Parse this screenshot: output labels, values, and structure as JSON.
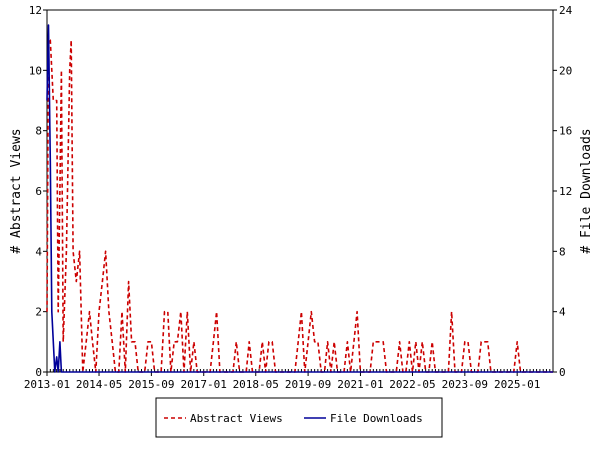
{
  "chart_data": {
    "type": "line",
    "title": "",
    "xlabel": "",
    "x_tick_labels": [
      "2013-01",
      "2014-05",
      "2015-09",
      "2017-01",
      "2018-05",
      "2019-09",
      "2021-01",
      "2022-05",
      "2023-09",
      "2025-01"
    ],
    "x_tick_dates": [
      "2013-01-01",
      "2014-05-01",
      "2015-09-01",
      "2017-01-01",
      "2018-05-01",
      "2019-09-01",
      "2021-01-01",
      "2022-05-01",
      "2023-09-01",
      "2025-01-01"
    ],
    "xlim": [
      "2013-01-01",
      "2025-12-01"
    ],
    "y_left": {
      "label": "# Abstract Views",
      "ylim": [
        0,
        12
      ],
      "ticks": [
        0,
        2,
        4,
        6,
        8,
        10,
        12
      ]
    },
    "y_right": {
      "label": "# File Downloads",
      "ylim": [
        0,
        24
      ],
      "ticks": [
        0,
        4,
        8,
        12,
        16,
        20,
        24
      ]
    },
    "grid": false,
    "legend_position": "bottom",
    "series": [
      {
        "name": "Abstract Views",
        "axis": "left",
        "color": "#cc0000",
        "style": "dashed",
        "points": [
          [
            "2013-01-01",
            2
          ],
          [
            "2013-01-15",
            11
          ],
          [
            "2013-02-01",
            11
          ],
          [
            "2013-02-15",
            10
          ],
          [
            "2013-03-01",
            9
          ],
          [
            "2013-04-01",
            9
          ],
          [
            "2013-04-15",
            2
          ],
          [
            "2013-05-01",
            6
          ],
          [
            "2013-05-15",
            10
          ],
          [
            "2013-06-01",
            1
          ],
          [
            "2013-07-01",
            4
          ],
          [
            "2013-08-01",
            10
          ],
          [
            "2013-08-15",
            11
          ],
          [
            "2013-09-01",
            4
          ],
          [
            "2013-10-01",
            3
          ],
          [
            "2013-11-01",
            4
          ],
          [
            "2013-12-01",
            0
          ],
          [
            "2014-01-01",
            1
          ],
          [
            "2014-02-01",
            2
          ],
          [
            "2014-03-01",
            1
          ],
          [
            "2014-04-01",
            0
          ],
          [
            "2014-05-01",
            2
          ],
          [
            "2014-06-01",
            3
          ],
          [
            "2014-07-01",
            4
          ],
          [
            "2014-08-01",
            2
          ],
          [
            "2014-09-01",
            1
          ],
          [
            "2014-10-01",
            0
          ],
          [
            "2014-11-01",
            0
          ],
          [
            "2014-12-01",
            2
          ],
          [
            "2015-01-01",
            0
          ],
          [
            "2015-02-01",
            3
          ],
          [
            "2015-03-01",
            1
          ],
          [
            "2015-04-01",
            1
          ],
          [
            "2015-05-01",
            0
          ],
          [
            "2015-06-01",
            0
          ],
          [
            "2015-07-01",
            0
          ],
          [
            "2015-08-01",
            1
          ],
          [
            "2015-09-01",
            1
          ],
          [
            "2015-10-01",
            0
          ],
          [
            "2015-11-01",
            0
          ],
          [
            "2015-12-01",
            0
          ],
          [
            "2016-01-01",
            2
          ],
          [
            "2016-02-01",
            2
          ],
          [
            "2016-03-01",
            0
          ],
          [
            "2016-04-01",
            1
          ],
          [
            "2016-05-01",
            1
          ],
          [
            "2016-06-01",
            2
          ],
          [
            "2016-07-01",
            0
          ],
          [
            "2016-08-01",
            2
          ],
          [
            "2016-09-01",
            0
          ],
          [
            "2016-10-01",
            1
          ],
          [
            "2016-11-01",
            0
          ],
          [
            "2016-12-01",
            0
          ],
          [
            "2017-01-01",
            0
          ],
          [
            "2017-02-01",
            0
          ],
          [
            "2017-03-01",
            0
          ],
          [
            "2017-04-01",
            1
          ],
          [
            "2017-05-01",
            2
          ],
          [
            "2017-06-01",
            0
          ],
          [
            "2017-07-01",
            0
          ],
          [
            "2017-08-01",
            0
          ],
          [
            "2017-09-01",
            0
          ],
          [
            "2017-10-01",
            0
          ],
          [
            "2017-11-01",
            1
          ],
          [
            "2017-12-01",
            0
          ],
          [
            "2018-01-01",
            0
          ],
          [
            "2018-02-01",
            0
          ],
          [
            "2018-03-01",
            1
          ],
          [
            "2018-04-01",
            0
          ],
          [
            "2018-05-01",
            0
          ],
          [
            "2018-06-01",
            0
          ],
          [
            "2018-07-01",
            1
          ],
          [
            "2018-08-01",
            0
          ],
          [
            "2018-09-01",
            1
          ],
          [
            "2018-10-01",
            1
          ],
          [
            "2018-11-01",
            0
          ],
          [
            "2018-12-01",
            0
          ],
          [
            "2019-01-01",
            0
          ],
          [
            "2019-02-01",
            0
          ],
          [
            "2019-03-01",
            0
          ],
          [
            "2019-04-01",
            0
          ],
          [
            "2019-05-01",
            0
          ],
          [
            "2019-06-01",
            1
          ],
          [
            "2019-07-01",
            2
          ],
          [
            "2019-08-01",
            0
          ],
          [
            "2019-09-01",
            1
          ],
          [
            "2019-10-01",
            2
          ],
          [
            "2019-11-01",
            1
          ],
          [
            "2019-12-01",
            1
          ],
          [
            "2020-01-01",
            0
          ],
          [
            "2020-02-01",
            0
          ],
          [
            "2020-03-01",
            1
          ],
          [
            "2020-04-01",
            0
          ],
          [
            "2020-05-01",
            1
          ],
          [
            "2020-06-01",
            0
          ],
          [
            "2020-07-01",
            0
          ],
          [
            "2020-08-01",
            0
          ],
          [
            "2020-09-01",
            1
          ],
          [
            "2020-10-01",
            0
          ],
          [
            "2020-11-01",
            1
          ],
          [
            "2020-12-01",
            2
          ],
          [
            "2021-01-01",
            0
          ],
          [
            "2021-02-01",
            0
          ],
          [
            "2021-03-01",
            0
          ],
          [
            "2021-04-01",
            0
          ],
          [
            "2021-05-01",
            1
          ],
          [
            "2021-06-01",
            1
          ],
          [
            "2021-07-01",
            1
          ],
          [
            "2021-08-01",
            1
          ],
          [
            "2021-09-01",
            0
          ],
          [
            "2021-10-01",
            0
          ],
          [
            "2021-11-01",
            0
          ],
          [
            "2021-12-01",
            0
          ],
          [
            "2022-01-01",
            1
          ],
          [
            "2022-02-01",
            0
          ],
          [
            "2022-03-01",
            0
          ],
          [
            "2022-04-01",
            1
          ],
          [
            "2022-05-01",
            0
          ],
          [
            "2022-06-01",
            1
          ],
          [
            "2022-07-01",
            0
          ],
          [
            "2022-08-01",
            1
          ],
          [
            "2022-09-01",
            0
          ],
          [
            "2022-10-01",
            0
          ],
          [
            "2022-11-01",
            1
          ],
          [
            "2022-12-01",
            0
          ],
          [
            "2023-01-01",
            0
          ],
          [
            "2023-02-01",
            0
          ],
          [
            "2023-03-01",
            0
          ],
          [
            "2023-04-01",
            0
          ],
          [
            "2023-05-01",
            2
          ],
          [
            "2023-06-01",
            0
          ],
          [
            "2023-07-01",
            0
          ],
          [
            "2023-08-01",
            0
          ],
          [
            "2023-09-01",
            1
          ],
          [
            "2023-10-01",
            1
          ],
          [
            "2023-11-01",
            0
          ],
          [
            "2023-12-01",
            0
          ],
          [
            "2024-01-01",
            0
          ],
          [
            "2024-02-01",
            1
          ],
          [
            "2024-03-01",
            1
          ],
          [
            "2024-04-01",
            1
          ],
          [
            "2024-05-01",
            0
          ],
          [
            "2024-06-01",
            0
          ],
          [
            "2024-07-01",
            0
          ],
          [
            "2024-08-01",
            0
          ],
          [
            "2024-09-01",
            0
          ],
          [
            "2024-10-01",
            0
          ],
          [
            "2024-11-01",
            0
          ],
          [
            "2024-12-01",
            0
          ],
          [
            "2025-01-01",
            1
          ],
          [
            "2025-02-01",
            0
          ],
          [
            "2025-03-01",
            0
          ],
          [
            "2025-04-01",
            0
          ],
          [
            "2025-05-01",
            0
          ],
          [
            "2025-06-01",
            0
          ],
          [
            "2025-07-01",
            0
          ],
          [
            "2025-08-01",
            0
          ],
          [
            "2025-09-01",
            0
          ],
          [
            "2025-10-01",
            0
          ],
          [
            "2025-11-01",
            0
          ],
          [
            "2025-12-01",
            0
          ]
        ]
      },
      {
        "name": "File Downloads",
        "axis": "right",
        "color": "#000099",
        "style": "solid",
        "points": [
          [
            "2013-01-01",
            18
          ],
          [
            "2013-01-15",
            23
          ],
          [
            "2013-02-01",
            14
          ],
          [
            "2013-02-15",
            4
          ],
          [
            "2013-03-01",
            2
          ],
          [
            "2013-03-15",
            0
          ],
          [
            "2013-04-01",
            1
          ],
          [
            "2013-04-15",
            0
          ],
          [
            "2013-05-01",
            2
          ],
          [
            "2013-05-15",
            0
          ],
          [
            "2013-06-01",
            0
          ],
          [
            "2014-01-01",
            0
          ],
          [
            "2015-01-01",
            0
          ],
          [
            "2016-01-01",
            0
          ],
          [
            "2017-01-01",
            0
          ],
          [
            "2018-01-01",
            0
          ],
          [
            "2019-01-01",
            0
          ],
          [
            "2020-01-01",
            0
          ],
          [
            "2021-01-01",
            0
          ],
          [
            "2022-01-01",
            0
          ],
          [
            "2023-01-01",
            0
          ],
          [
            "2024-01-01",
            0
          ],
          [
            "2025-01-01",
            0
          ],
          [
            "2025-12-01",
            0
          ]
        ]
      }
    ]
  }
}
